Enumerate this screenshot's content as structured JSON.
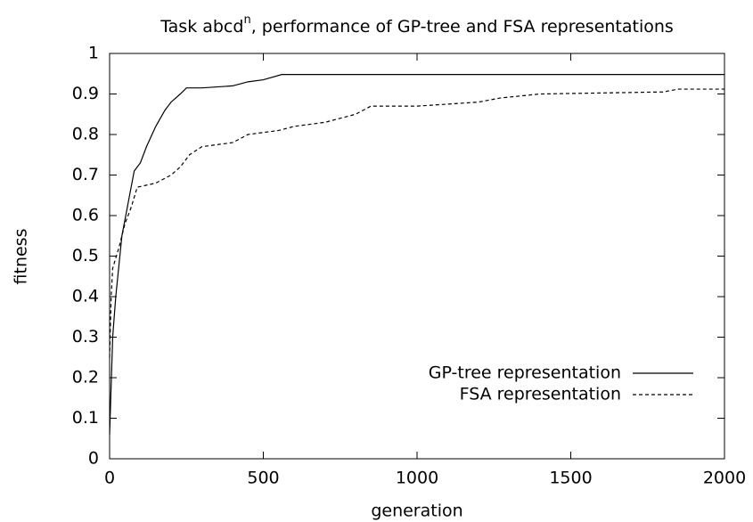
{
  "chart_data": {
    "type": "line",
    "title": {
      "text": "Task abcd",
      "superscript": "n",
      "rest": ", performance of GP-tree and FSA representations"
    },
    "xlabel": "generation",
    "ylabel": "fitness",
    "xlim": [
      0,
      2000
    ],
    "ylim": [
      0,
      1
    ],
    "xticks": [
      0,
      500,
      1000,
      1500,
      2000
    ],
    "yticks": [
      0,
      0.1,
      0.2,
      0.3,
      0.4,
      0.5,
      0.6,
      0.7,
      0.8,
      0.9,
      1
    ],
    "legend": "lower right",
    "series": [
      {
        "name": "GP-tree representation",
        "color": "#000000",
        "dash": false,
        "x": [
          0,
          10,
          20,
          40,
          60,
          80,
          100,
          120,
          150,
          180,
          200,
          230,
          250,
          300,
          400,
          450,
          500,
          560,
          2000
        ],
        "y": [
          0.06,
          0.3,
          0.4,
          0.55,
          0.63,
          0.71,
          0.73,
          0.77,
          0.82,
          0.86,
          0.88,
          0.9,
          0.915,
          0.915,
          0.92,
          0.93,
          0.935,
          0.948,
          0.948
        ]
      },
      {
        "name": "FSA representation",
        "color": "#000000",
        "dash": true,
        "x": [
          0,
          5,
          10,
          30,
          50,
          70,
          90,
          150,
          200,
          230,
          260,
          300,
          400,
          450,
          550,
          600,
          700,
          800,
          850,
          1000,
          1200,
          1270,
          1400,
          1800,
          1850,
          2000
        ],
        "y": [
          0.25,
          0.4,
          0.47,
          0.52,
          0.58,
          0.62,
          0.67,
          0.68,
          0.7,
          0.72,
          0.75,
          0.77,
          0.78,
          0.8,
          0.81,
          0.82,
          0.83,
          0.85,
          0.87,
          0.87,
          0.88,
          0.89,
          0.9,
          0.905,
          0.912,
          0.912
        ]
      }
    ]
  }
}
